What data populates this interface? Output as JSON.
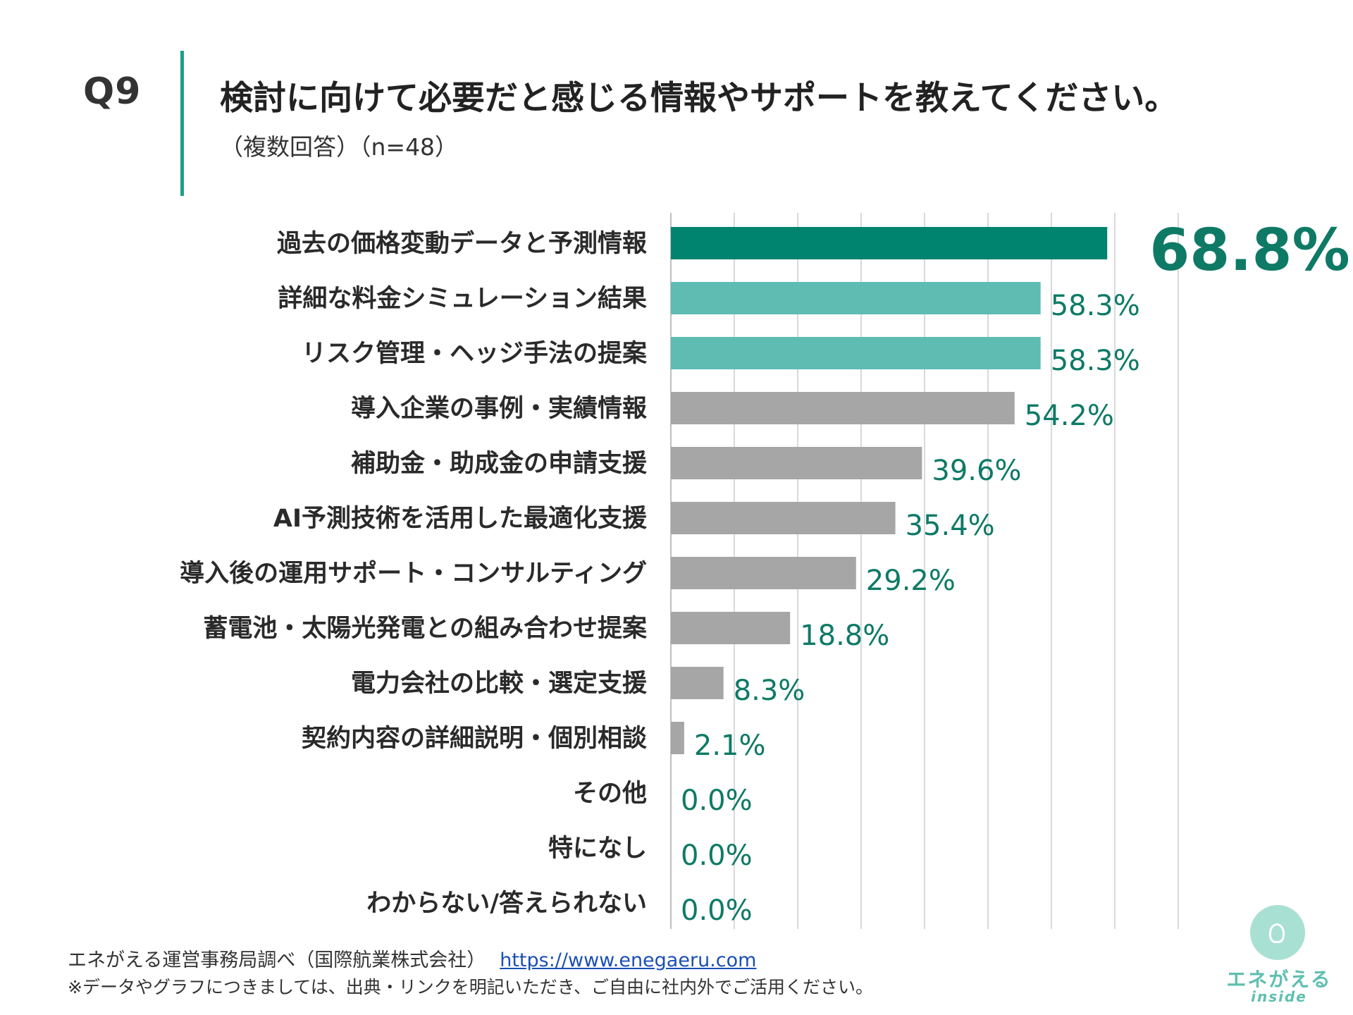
{
  "header": {
    "qnum": "Q9",
    "title": "検討に向けて必要だと感じる情報やサポートを教えてください。",
    "subtitle": "（複数回答）（n=48）"
  },
  "colors": {
    "accent": "#1e9f88",
    "top_bar": "#00846f",
    "second_bar": "#5fbcb2",
    "other_bar": "#a6a6a6",
    "value_text": "#0e7a66",
    "grid": "#d9d9d9"
  },
  "chart_data": {
    "type": "bar",
    "orientation": "horizontal",
    "categories": [
      "過去の価格変動データと予測情報",
      "詳細な料金シミュレーション結果",
      "リスク管理・ヘッジ手法の提案",
      "導入企業の事例・実績情報",
      "補助金・助成金の申請支援",
      "AI予測技術を活用した最適化支援",
      "導入後の運用サポート・コンサルティング",
      "蓄電池・太陽光発電との組み合わせ提案",
      "電力会社の比較・選定支援",
      "契約内容の詳細説明・個別相談",
      "その他",
      "特になし",
      "わからない/答えられない"
    ],
    "values": [
      68.8,
      58.3,
      58.3,
      54.2,
      39.6,
      35.4,
      29.2,
      18.8,
      8.3,
      2.1,
      0.0,
      0.0,
      0.0
    ],
    "value_labels": [
      "68.8%",
      "58.3%",
      "58.3%",
      "54.2%",
      "39.6%",
      "35.4%",
      "29.2%",
      "18.8%",
      "8.3%",
      "2.1%",
      "0.0%",
      "0.0%",
      "0.0%"
    ],
    "xlim": [
      0,
      80
    ],
    "grid_step": 10,
    "grid": true,
    "legend": "none"
  },
  "footer": {
    "source": "エネがえる運営事務局調べ（国際航業株式会社）",
    "url": "https://www.enegaeru.com",
    "note": "※データやグラフにつきましては、出典・リンクを明記いただき、ご自由に社内外でご活用ください。"
  },
  "logo": {
    "text": "エネがえる",
    "sub": "inside",
    "icon": "lightbulb-icon"
  }
}
